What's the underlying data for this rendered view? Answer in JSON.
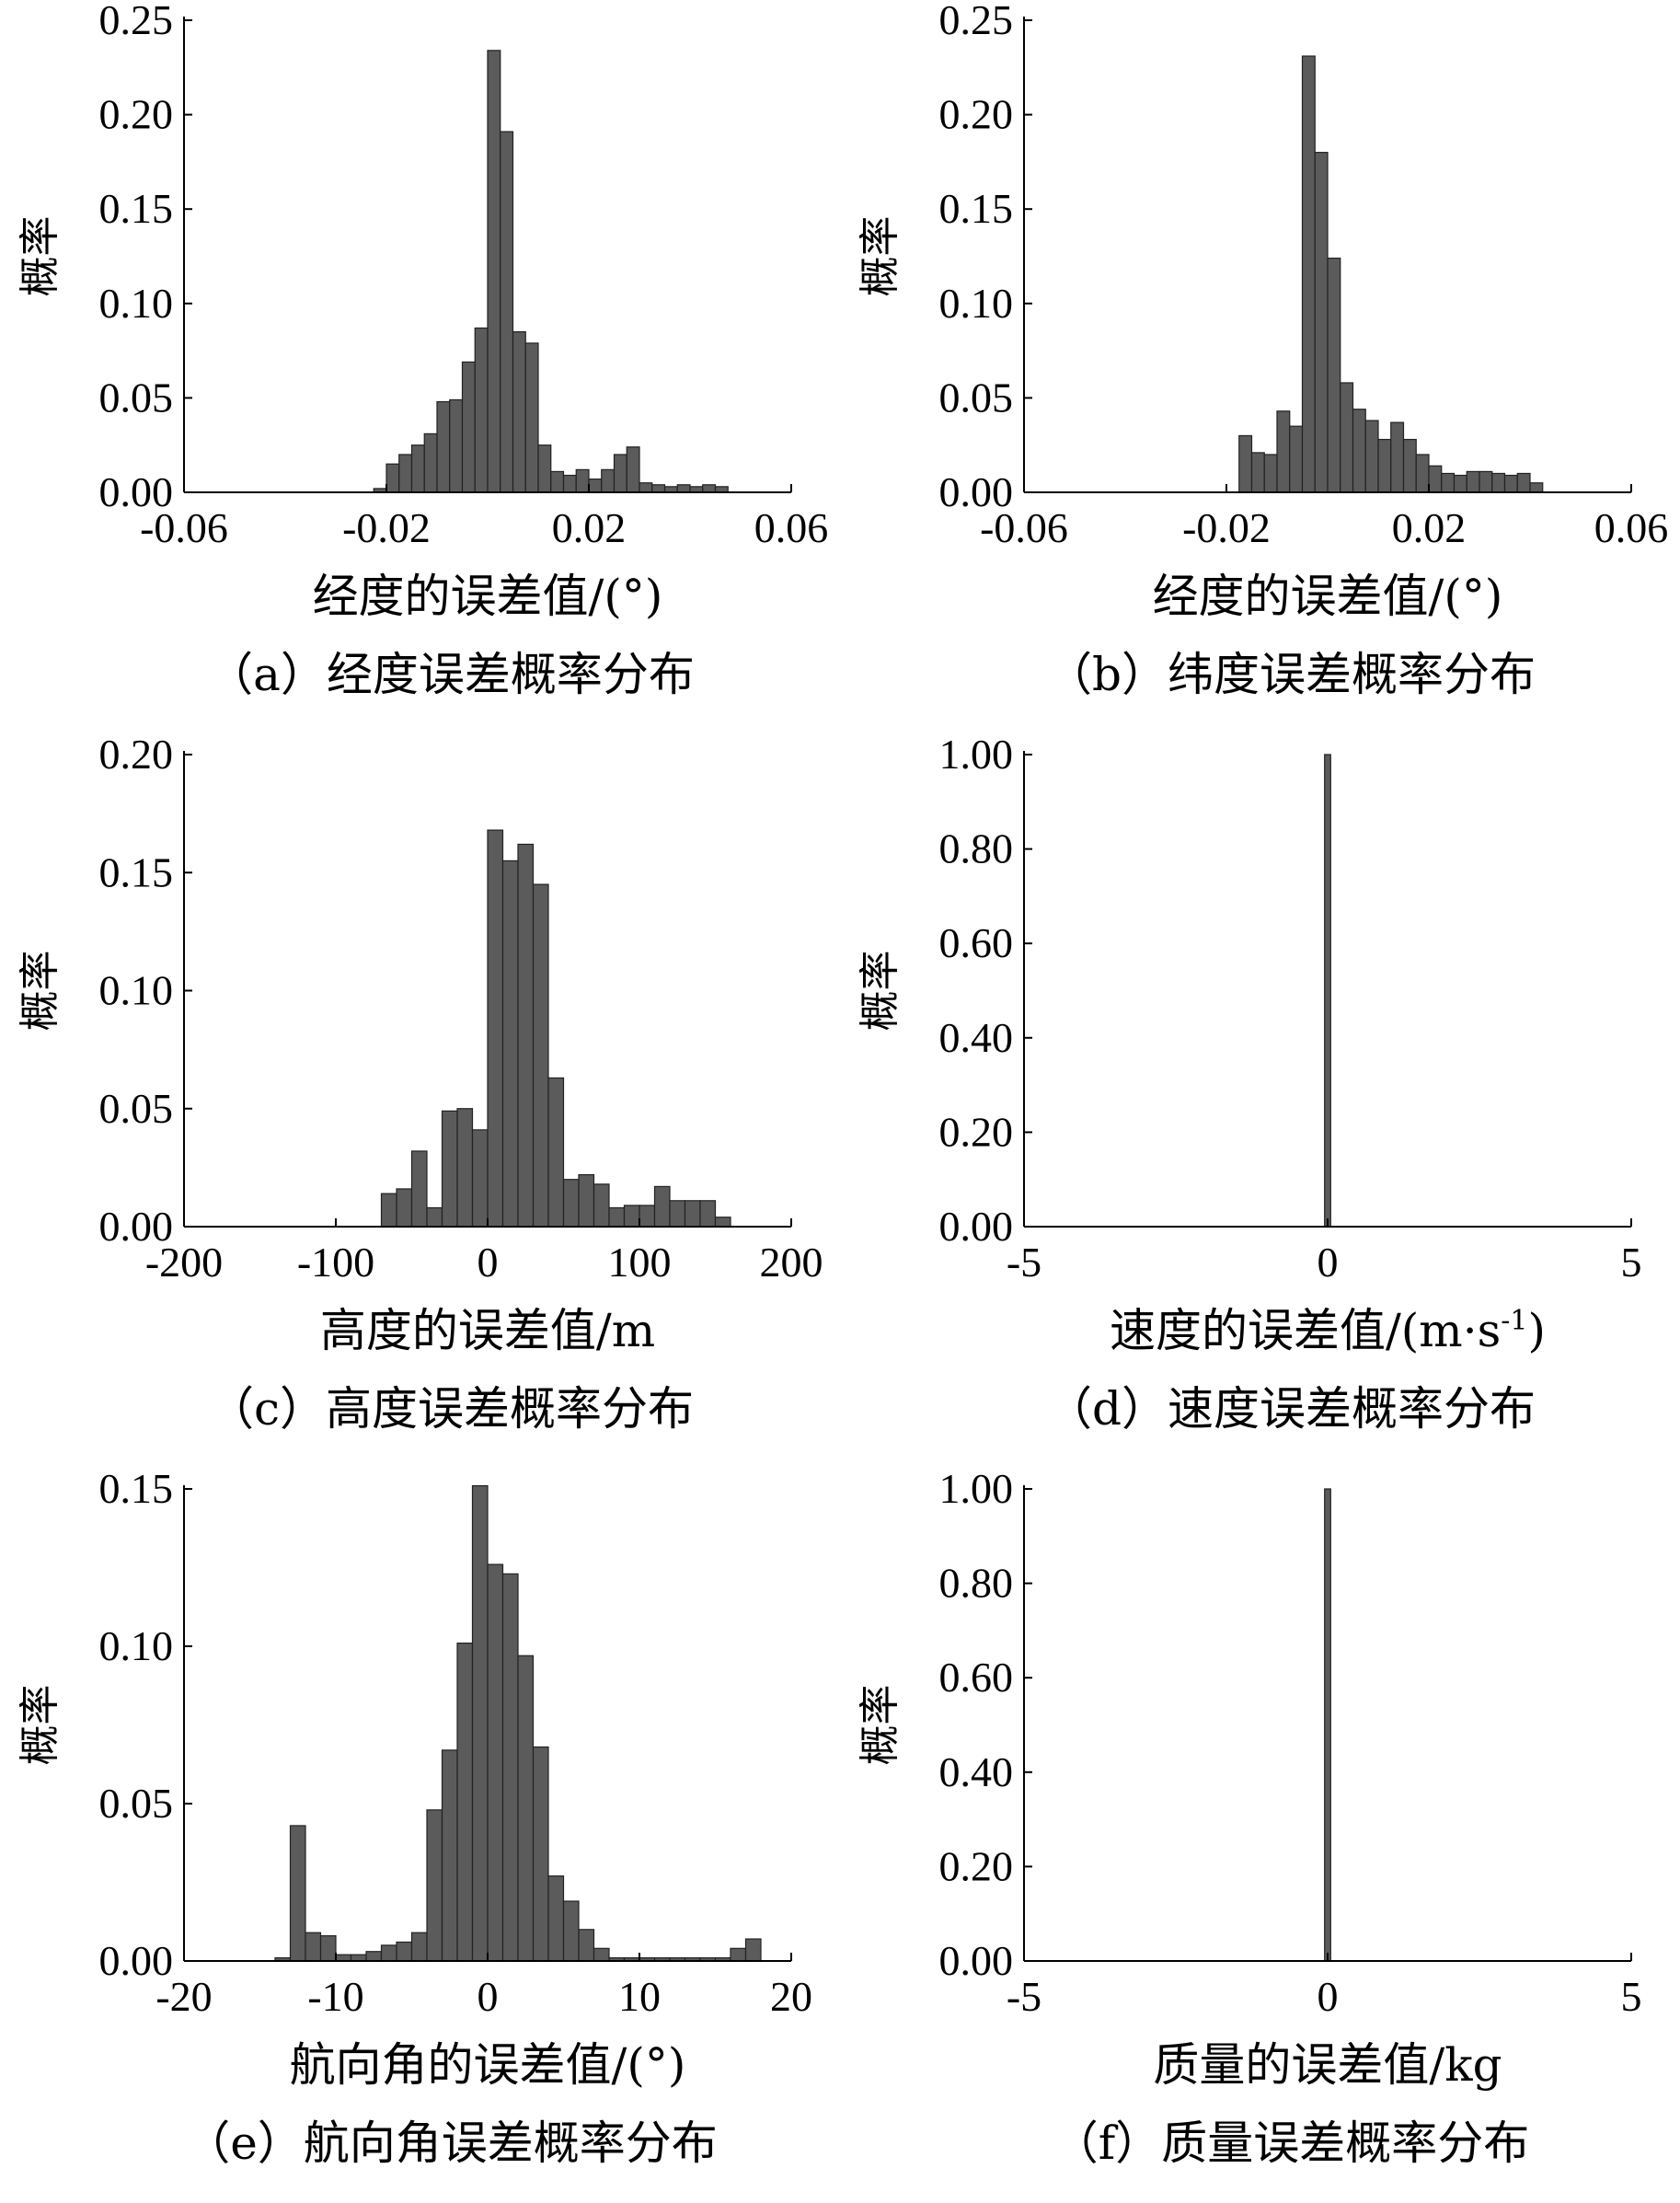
{
  "chart_data": [
    {
      "id": "a",
      "type": "bar",
      "ylabel": "概率",
      "xlabel": "经度的误差值/(°)",
      "caption": "（a）经度误差概率分布",
      "xlim": [
        -0.06,
        0.06
      ],
      "ylim": [
        0,
        0.25
      ],
      "xticks": [
        -0.06,
        -0.02,
        0.02,
        0.06
      ],
      "xtick_labels": [
        "-0.06",
        "-0.02",
        "0.02",
        "0.06"
      ],
      "yticks": [
        0,
        0.05,
        0.1,
        0.15,
        0.2,
        0.25
      ],
      "ytick_labels": [
        "0.00",
        "0.05",
        "0.10",
        "0.15",
        "0.20",
        "0.25"
      ],
      "bin_start": -0.0225,
      "bin_width": 0.0025,
      "values": [
        0.002,
        0.015,
        0.02,
        0.025,
        0.031,
        0.048,
        0.049,
        0.069,
        0.087,
        0.234,
        0.191,
        0.085,
        0.079,
        0.025,
        0.011,
        0.009,
        0.012,
        0.007,
        0.012,
        0.02,
        0.024,
        0.005,
        0.004,
        0.003,
        0.004,
        0.003,
        0.004,
        0.003
      ]
    },
    {
      "id": "b",
      "type": "bar",
      "ylabel": "概率",
      "xlabel": "经度的误差值/(°)",
      "caption": "（b）纬度误差概率分布",
      "xlim": [
        -0.06,
        0.06
      ],
      "ylim": [
        0,
        0.25
      ],
      "xticks": [
        -0.06,
        -0.02,
        0.02,
        0.06
      ],
      "xtick_labels": [
        "-0.06",
        "-0.02",
        "0.02",
        "0.06"
      ],
      "yticks": [
        0,
        0.05,
        0.1,
        0.15,
        0.2,
        0.25
      ],
      "ytick_labels": [
        "0.00",
        "0.05",
        "0.10",
        "0.15",
        "0.20",
        "0.25"
      ],
      "bin_start": -0.0175,
      "bin_width": 0.0025,
      "values": [
        0.03,
        0.021,
        0.02,
        0.043,
        0.035,
        0.231,
        0.18,
        0.124,
        0.058,
        0.044,
        0.038,
        0.028,
        0.037,
        0.028,
        0.02,
        0.014,
        0.01,
        0.009,
        0.011,
        0.011,
        0.01,
        0.009,
        0.01,
        0.005
      ]
    },
    {
      "id": "c",
      "type": "bar",
      "ylabel": "概率",
      "xlabel": "高度的误差值/m",
      "caption": "（c）高度误差概率分布",
      "xlim": [
        -200,
        200
      ],
      "ylim": [
        0,
        0.2
      ],
      "xticks": [
        -200,
        -100,
        0,
        100,
        200
      ],
      "xtick_labels": [
        "-200",
        "-100",
        "0",
        "100",
        "200"
      ],
      "yticks": [
        0,
        0.05,
        0.1,
        0.15,
        0.2
      ],
      "ytick_labels": [
        "0.00",
        "0.05",
        "0.10",
        "0.15",
        "0.20"
      ],
      "bin_start": -70,
      "bin_width": 10,
      "values": [
        0.014,
        0.016,
        0.032,
        0.008,
        0.049,
        0.05,
        0.041,
        0.168,
        0.155,
        0.162,
        0.145,
        0.063,
        0.02,
        0.022,
        0.018,
        0.008,
        0.009,
        0.009,
        0.017,
        0.011,
        0.011,
        0.011,
        0.004
      ]
    },
    {
      "id": "d",
      "type": "bar",
      "ylabel": "概率",
      "xlabel": "速度的误差值/(m·s",
      "xlabel_sup": "-1",
      "xlabel_end": ")",
      "caption": "（d）速度误差概率分布",
      "xlim": [
        -5,
        5
      ],
      "ylim": [
        0,
        1.0
      ],
      "xticks": [
        -5,
        0,
        5
      ],
      "xtick_labels": [
        "-5",
        "0",
        "5"
      ],
      "yticks": [
        0,
        0.2,
        0.4,
        0.6,
        0.8,
        1.0
      ],
      "ytick_labels": [
        "0.00",
        "0.20",
        "0.40",
        "0.60",
        "0.80",
        "1.00"
      ],
      "bin_start": -0.05,
      "bin_width": 0.1,
      "values": [
        1.0
      ]
    },
    {
      "id": "e",
      "type": "bar",
      "ylabel": "概率",
      "xlabel": "航向角的误差值/(°)",
      "caption": "（e）航向角误差概率分布",
      "xlim": [
        -20,
        20
      ],
      "ylim": [
        0,
        0.15
      ],
      "xticks": [
        -20,
        -10,
        0,
        10,
        20
      ],
      "xtick_labels": [
        "-20",
        "-10",
        "0",
        "10",
        "20"
      ],
      "yticks": [
        0,
        0.05,
        0.1,
        0.15
      ],
      "ytick_labels": [
        "0.00",
        "0.05",
        "0.10",
        "0.15"
      ],
      "bin_start": -14,
      "bin_width": 1,
      "values": [
        0.001,
        0.043,
        0.009,
        0.008,
        0.002,
        0.002,
        0.003,
        0.005,
        0.006,
        0.009,
        0.048,
        0.067,
        0.101,
        0.151,
        0.126,
        0.123,
        0.097,
        0.068,
        0.027,
        0.019,
        0.01,
        0.004,
        0.001,
        0.001,
        0.001,
        0.001,
        0.001,
        0.001,
        0.001,
        0.001,
        0.004,
        0.007
      ]
    },
    {
      "id": "f",
      "type": "bar",
      "ylabel": "概率",
      "xlabel": "质量的误差值/kg",
      "caption": "（f）质量误差概率分布",
      "xlim": [
        -5,
        5
      ],
      "ylim": [
        0,
        1.0
      ],
      "xticks": [
        -5,
        0,
        5
      ],
      "xtick_labels": [
        "-5",
        "0",
        "5"
      ],
      "yticks": [
        0,
        0.2,
        0.4,
        0.6,
        0.8,
        1.0
      ],
      "ytick_labels": [
        "0.00",
        "0.20",
        "0.40",
        "0.60",
        "0.80",
        "1.00"
      ],
      "bin_start": -0.05,
      "bin_width": 0.1,
      "values": [
        1.0
      ]
    }
  ]
}
